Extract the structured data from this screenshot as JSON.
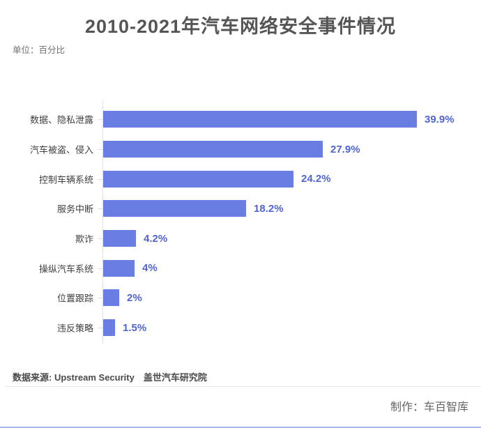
{
  "title": "2010-2021年汽车网络安全事件情况",
  "unit_label": "单位：百分比",
  "footer": {
    "source": "数据来源: Upstream Security　盖世汽车研究院",
    "credit": "制作：车百智库"
  },
  "colors": {
    "bar": "#6a7de3",
    "value_text": "#5065d1",
    "axis": "#dfe2e8",
    "title_text": "#555555",
    "label_text": "#3f3f3f",
    "source_text": "#4a4a4a",
    "credit_text": "#666666",
    "divider": "#e9e9e9",
    "bottom_line": "#a9b7ec"
  },
  "chart_data": {
    "type": "bar",
    "orientation": "horizontal",
    "title": "2010-2021年汽车网络安全事件情况",
    "unit": "百分比",
    "xlabel": "",
    "ylabel": "",
    "xlim": [
      0,
      45
    ],
    "grid": false,
    "legend": false,
    "categories": [
      "数据、隐私泄露",
      "汽车被盗、侵入",
      "控制车辆系统",
      "服务中断",
      "欺诈",
      "操纵汽车系统",
      "位置跟踪",
      "违反策略"
    ],
    "values": [
      39.9,
      27.9,
      24.2,
      18.2,
      4.2,
      4,
      2,
      1.5
    ],
    "value_labels": [
      "39.9%",
      "27.9%",
      "24.2%",
      "18.2%",
      "4.2%",
      "4%",
      "2%",
      "1.5%"
    ]
  }
}
